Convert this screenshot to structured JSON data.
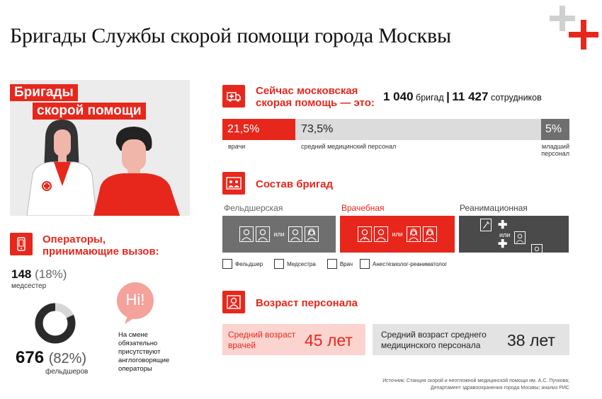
{
  "title": "Бригады Службы скорой помощи города Москвы",
  "hero": {
    "line1": "Бригады",
    "line2": "скорой помощи"
  },
  "now": {
    "heading_l1": "Сейчас московская",
    "heading_l2": "скорая помощь — это:",
    "brigades_num": "1 040",
    "brigades_unit": "бригад",
    "sep": "|",
    "staff_num": "11 427",
    "staff_unit": "сотрудников"
  },
  "staff_bar": {
    "segments": [
      {
        "pct": "21,5%",
        "label": "врачи",
        "value": 21.5
      },
      {
        "pct": "73,5%",
        "label": "средний медицинский персонал",
        "value": 73.5
      },
      {
        "pct": "5%",
        "label_l1": "младший",
        "label_l2": "персонал",
        "value": 5
      }
    ]
  },
  "composition": {
    "heading": "Состав бригад",
    "types": [
      {
        "name": "Фельдшерская",
        "color": "#6f6f6f"
      },
      {
        "name": "Врачебная",
        "color": "#e8271c"
      },
      {
        "name": "Реанимационная",
        "color": "#4a4a4a"
      }
    ],
    "or": "или",
    "legend": [
      "Фельдшер",
      "Медсестра",
      "Врач",
      "Анестезиолог-реаниматолог"
    ]
  },
  "age": {
    "heading": "Возраст персонала",
    "doctors_l1": "Средний возраст",
    "doctors_l2": "врачей",
    "doctors_val": "45 лет",
    "medium_l1": "Средний возраст среднего",
    "medium_l2": "медицинского персонала",
    "medium_val": "38 лет"
  },
  "operators": {
    "heading_l1": "Операторы,",
    "heading_l2": "принимающие вызов:",
    "nurses_num": "148",
    "nurses_pct": "(18%)",
    "nurses_label": "медсестер",
    "paramedics_num": "676",
    "paramedics_pct": "(82%)",
    "paramedics_label": "фельдшеров",
    "donut_share": 0.82,
    "bubble": "Hi!",
    "note": [
      "На смене",
      "обязательно",
      "присутствуют",
      "англоговорящие",
      "операторы"
    ]
  },
  "source": {
    "l1": "Источник: Станция скорой и неотложной медицинской помощи им. А.С. Пучкова;",
    "l2": "Департамент здравоохранения города Москвы; анализ РИС"
  },
  "colors": {
    "accent": "#e8271c",
    "gray": "#d9d9d9",
    "dark": "#4a4a4a"
  },
  "icons": [
    "plus-logo-icon",
    "ambulance-icon",
    "team-icon",
    "person-icon",
    "phone-icon",
    "syringe-icon"
  ]
}
